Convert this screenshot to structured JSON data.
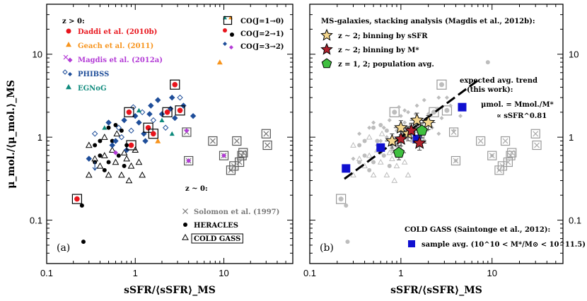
{
  "chart_data": [
    {
      "type": "scatter",
      "panel_tag": "(a)",
      "xlabel": "sSFR/⟨sSFR⟩_MS",
      "ylabel": "μ_mol./⟨μ_mol.⟩_MS",
      "xscale": "log",
      "yscale": "log",
      "xlim": [
        0.1,
        60
      ],
      "ylim": [
        0.03,
        40
      ],
      "xticklabels": [
        "0.1",
        "1",
        "10"
      ],
      "yticklabels": [
        "0.1",
        "1",
        "10"
      ],
      "legend_highz": {
        "heading": "z > 0:",
        "entries": [
          {
            "label": "Daddi et al. (2010b)",
            "color": "#e8141c"
          },
          {
            "label": "Geach et al. (2011)",
            "color": "#f7941d"
          },
          {
            "label": "Magdis et al. (2012a)",
            "color": "#b33bd6"
          },
          {
            "label": "PHIBSS",
            "color": "#1f4e9a"
          },
          {
            "label": "EGNoG",
            "color": "#0e8a7c"
          }
        ]
      },
      "legend_co": [
        {
          "label": "CO(J=1→0)",
          "marker": "square"
        },
        {
          "label": "CO(J=2→1)",
          "marker": "circle"
        },
        {
          "label": "CO(J=3→2)",
          "marker": "diamond"
        }
      ],
      "legend_lowz": {
        "heading": "z ~ 0:",
        "entries": [
          {
            "label": "Solomon et al. (1997)",
            "color": "#777777"
          },
          {
            "label": "HERACLES",
            "color": "#000000"
          },
          {
            "label": "COLD GASS",
            "color": "#000000"
          }
        ]
      },
      "series": [
        {
          "name": "Daddi et al. (2010b)",
          "color": "#e8141c",
          "points": [
            [
              0.22,
              0.18
            ],
            [
              0.85,
              2.0
            ],
            [
              1.4,
              1.3
            ],
            [
              2.3,
              2.0
            ],
            [
              2.8,
              4.3
            ],
            [
              3.2,
              2.1
            ],
            [
              0.9,
              0.8
            ],
            [
              1.6,
              1.1
            ]
          ]
        },
        {
          "name": "Geach et al. (2011)",
          "color": "#f7941d",
          "points": [
            [
              9.0,
              8.0
            ],
            [
              1.8,
              0.9
            ]
          ]
        },
        {
          "name": "Magdis et al. (2012a)",
          "color": "#b33bd6",
          "points": [
            [
              3.8,
              1.2
            ],
            [
              10.0,
              0.6
            ],
            [
              4.0,
              0.52
            ],
            [
              0.6,
              0.65
            ]
          ]
        },
        {
          "name": "PHIBSS",
          "color": "#1f4e9a",
          "points": [
            [
              0.3,
              0.55
            ],
            [
              0.35,
              1.1
            ],
            [
              0.5,
              1.5
            ],
            [
              0.6,
              0.9
            ],
            [
              0.7,
              1.0
            ],
            [
              0.75,
              1.6
            ],
            [
              0.8,
              0.7
            ],
            [
              0.9,
              1.2
            ],
            [
              1.0,
              1.8
            ],
            [
              1.1,
              1.5
            ],
            [
              1.2,
              2.0
            ],
            [
              1.3,
              0.9
            ],
            [
              1.5,
              2.4
            ],
            [
              1.6,
              1.6
            ],
            [
              1.8,
              2.8
            ],
            [
              2.0,
              1.9
            ],
            [
              2.2,
              1.3
            ],
            [
              2.5,
              2.2
            ],
            [
              2.8,
              1.7
            ],
            [
              3.2,
              3.0
            ],
            [
              3.5,
              2.4
            ],
            [
              4.5,
              1.8
            ],
            [
              0.65,
              1.3
            ],
            [
              0.55,
              0.8
            ],
            [
              1.25,
              1.1
            ],
            [
              0.95,
              2.3
            ],
            [
              1.45,
              1.9
            ],
            [
              2.6,
              3.0
            ]
          ]
        },
        {
          "name": "EGNoG",
          "color": "#0e8a7c",
          "points": [
            [
              0.45,
              1.3
            ],
            [
              1.1,
              2.1
            ],
            [
              2.0,
              1.6
            ],
            [
              2.6,
              1.1
            ]
          ]
        },
        {
          "name": "Solomon et al. (1997)",
          "color": "#777777",
          "points": [
            [
              3.8,
              1.15
            ],
            [
              7.5,
              0.9
            ],
            [
              10.0,
              0.6
            ],
            [
              12.0,
              0.4
            ],
            [
              14.0,
              0.9
            ],
            [
              16.0,
              0.6
            ],
            [
              15.0,
              0.5
            ],
            [
              30.0,
              1.1
            ],
            [
              31.0,
              0.8
            ],
            [
              16.5,
              0.65
            ],
            [
              4.0,
              0.52
            ],
            [
              13.0,
              0.45
            ]
          ]
        },
        {
          "name": "HERACLES",
          "color": "#000000",
          "points": [
            [
              0.25,
              0.15
            ],
            [
              0.26,
              0.055
            ],
            [
              0.35,
              0.8
            ],
            [
              0.4,
              0.6
            ],
            [
              0.45,
              0.4
            ],
            [
              0.5,
              0.5
            ],
            [
              0.55,
              0.9
            ],
            [
              0.6,
              1.4
            ],
            [
              0.65,
              0.6
            ],
            [
              0.7,
              1.2
            ],
            [
              0.75,
              0.45
            ],
            [
              0.5,
              1.3
            ],
            [
              0.35,
              0.5
            ],
            [
              0.8,
              0.8
            ],
            [
              0.4,
              0.9
            ]
          ]
        },
        {
          "name": "COLD GASS",
          "color": "#000000",
          "points": [
            [
              0.3,
              0.8
            ],
            [
              0.35,
              0.55
            ],
            [
              0.4,
              0.45
            ],
            [
              0.45,
              1.0
            ],
            [
              0.5,
              0.35
            ],
            [
              0.55,
              0.7
            ],
            [
              0.6,
              0.5
            ],
            [
              0.62,
              1.1
            ],
            [
              0.7,
              0.35
            ],
            [
              0.75,
              0.65
            ],
            [
              0.8,
              0.55
            ],
            [
              0.85,
              0.3
            ],
            [
              0.9,
              0.45
            ],
            [
              1.0,
              0.7
            ],
            [
              1.1,
              0.5
            ],
            [
              1.2,
              0.35
            ],
            [
              0.45,
              0.6
            ],
            [
              0.3,
              0.35
            ]
          ]
        }
      ]
    },
    {
      "type": "scatter",
      "panel_tag": "(b)",
      "xlabel": "sSFR/⟨sSFR⟩_MS",
      "ylabel": "",
      "xscale": "log",
      "yscale": "log",
      "xlim": [
        0.1,
        60
      ],
      "ylim": [
        0.03,
        40
      ],
      "xticklabels": [
        "0.1",
        "1",
        "10"
      ],
      "yticklabels": [
        "0.1",
        "1",
        "10"
      ],
      "legend": {
        "heading": "MS-galaxies, stacking analysis (Magdis et al., 2012b):",
        "entries": [
          {
            "label": "z ~ 2; binning by sSFR",
            "color": "#f5d78e",
            "marker": "star"
          },
          {
            "label": "z ~ 2; binning by M*",
            "color": "#b0212c",
            "marker": "star"
          },
          {
            "label": "z = 1, 2; population avg.",
            "color": "#3fbf3f",
            "marker": "pentagon"
          }
        ]
      },
      "trend_annotation": {
        "line1": "expected avg. trend",
        "line2": "(this work):",
        "formula1": "μmol. = Mmol./M*",
        "formula2": "∝ sSFR^0.81"
      },
      "coldgass_legend": {
        "heading": "COLD GASS (Saintonge et al., 2012):",
        "entry": "sample avg. (10^10 < M*/M⊙ < 10^11.5)",
        "color": "#1010d0"
      },
      "trend_line": {
        "slope": 0.81,
        "norm_at_x1": 1.0,
        "x_range": [
          0.24,
          7.5
        ]
      },
      "series": [
        {
          "name": "z ~ 2; binning by sSFR",
          "color": "#f5d78e",
          "points": [
            [
              0.8,
              0.9
            ],
            [
              1.0,
              1.3
            ],
            [
              1.2,
              1.1
            ],
            [
              1.5,
              1.6
            ],
            [
              2.0,
              1.5
            ]
          ]
        },
        {
          "name": "z ~ 2; binning by M*",
          "color": "#b0212c",
          "points": [
            [
              1.0,
              0.95
            ],
            [
              1.3,
              1.2
            ],
            [
              1.6,
              0.85
            ]
          ]
        },
        {
          "name": "z = 1, 2; population avg.",
          "color": "#3fbf3f",
          "points": [
            [
              0.95,
              0.65
            ],
            [
              1.7,
              1.2
            ]
          ]
        },
        {
          "name": "COLD GASS sample avg.",
          "color": "#1010d0",
          "points": [
            [
              0.25,
              0.42
            ],
            [
              0.6,
              0.75
            ],
            [
              1.5,
              0.95
            ],
            [
              4.7,
              2.3
            ]
          ]
        }
      ]
    }
  ]
}
